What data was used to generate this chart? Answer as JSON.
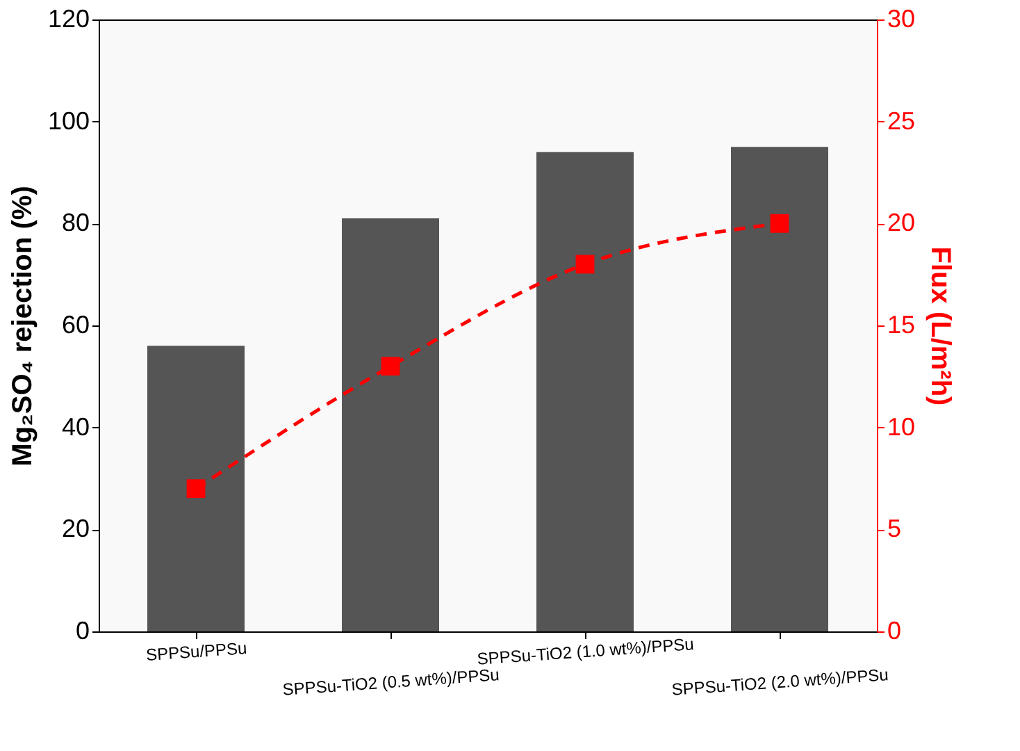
{
  "chart_data": {
    "type": "bar",
    "ylabel": "Mg₂SO₄ rejection (%)",
    "y2label": "Flux (L/m²h)",
    "categories": [
      "SPPSu/PPSu",
      "SPPSu-TiO2 (0.5 wt%)/PPSu",
      "SPPSu-TiO2 (1.0 wt%)/PPSu",
      "SPPSu-TiO2 (2.0 wt%)/PPSu"
    ],
    "series": [
      {
        "color": "#555555",
        "values": [
          56,
          81,
          94,
          95
        ]
      },
      {
        "type": "line",
        "axis": "y2",
        "color": "#ff0000",
        "values": [
          7,
          13,
          18,
          20
        ],
        "marker": "square",
        "line_style": "dashed"
      }
    ],
    "ylim": [
      0,
      120
    ],
    "yticks": [
      0,
      20,
      40,
      60,
      80,
      100,
      120
    ],
    "y2lim": [
      0,
      30
    ],
    "y2ticks": [
      0,
      5,
      10,
      15,
      20,
      25,
      30
    ],
    "grid": false,
    "legend": false
  }
}
